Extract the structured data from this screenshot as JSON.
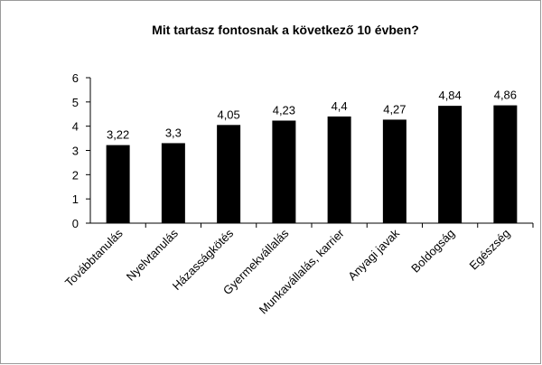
{
  "chart_data": {
    "type": "bar",
    "title": "Mit tartasz fontosnak  a következő 10 évben?",
    "categories": [
      "Továbbtanulás",
      "Nyelvtanulás",
      "Házasságkötés",
      "Gyermekvállalás",
      "Munkavállalás, karrier",
      "Anyagi javak",
      "Boldogság",
      "Egészség"
    ],
    "values": [
      3.22,
      3.3,
      4.05,
      4.23,
      4.4,
      4.27,
      4.84,
      4.86
    ],
    "value_labels": [
      "3,22",
      "3,3",
      "4,05",
      "4,23",
      "4,4",
      "4,27",
      "4,84",
      "4,86"
    ],
    "color": "#000000",
    "ylim": [
      0,
      6
    ],
    "yticks": [
      0,
      1,
      2,
      3,
      4,
      5,
      6
    ],
    "grid": false
  }
}
